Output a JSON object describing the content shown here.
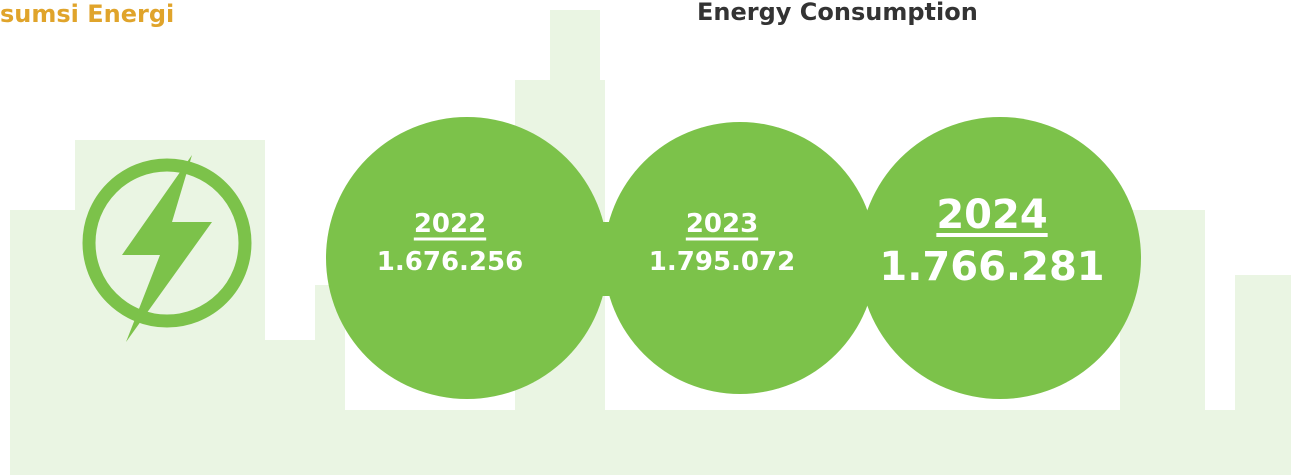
{
  "header": {
    "title_id": "sumsi Energi",
    "title_en": "Energy Consumption"
  },
  "items": [
    {
      "year": "2022",
      "value": "1.676.256"
    },
    {
      "year": "2023",
      "value": "1.795.072"
    },
    {
      "year": "2024",
      "value": "1.766.281"
    }
  ]
}
